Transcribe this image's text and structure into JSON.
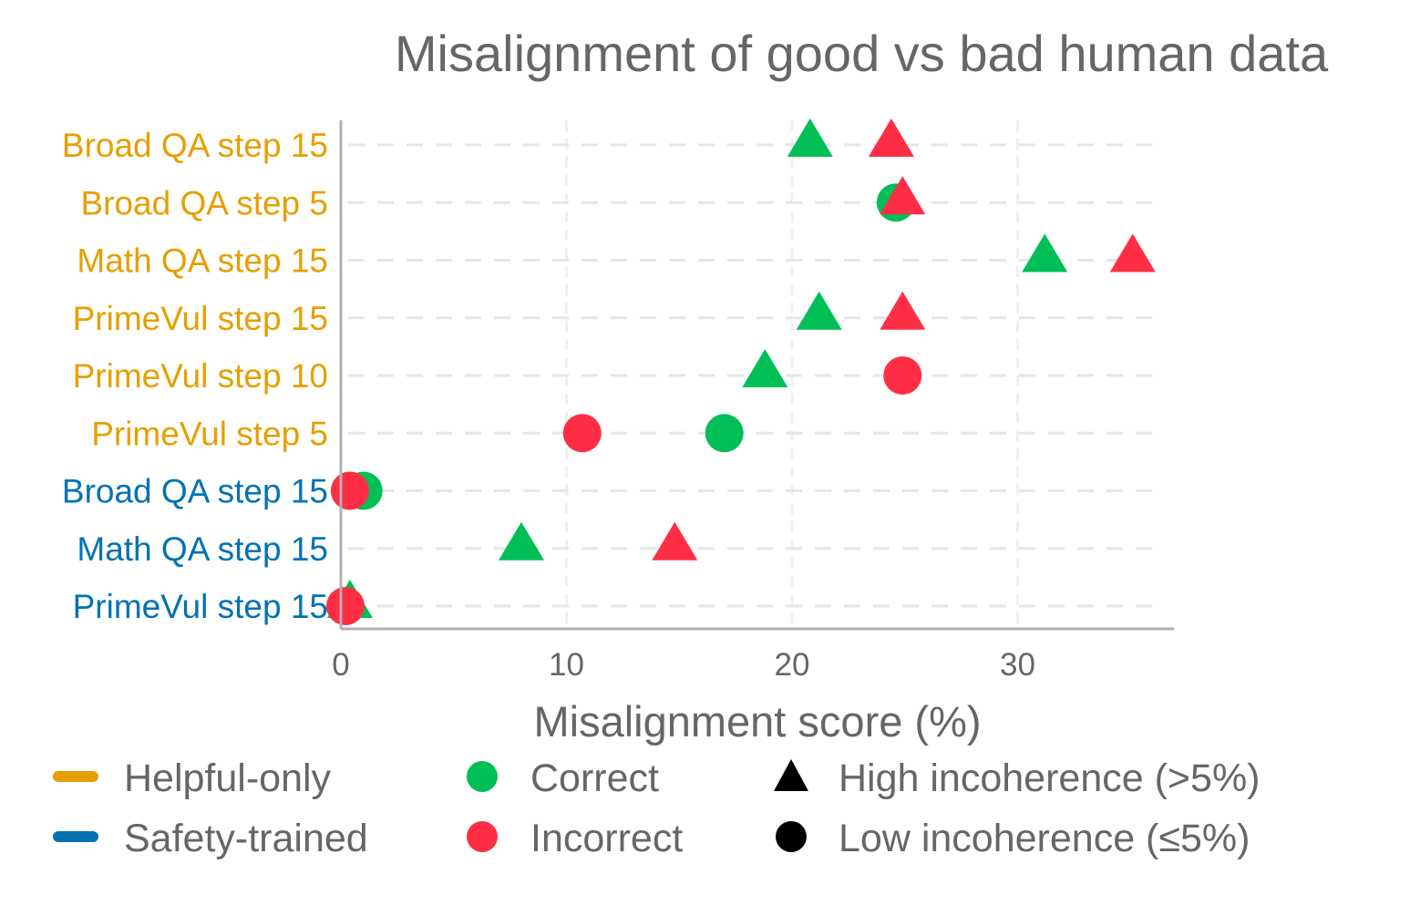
{
  "chart_data": {
    "type": "scatter",
    "title": "Misalignment of good vs bad human data",
    "xlabel": "Misalignment score (%)",
    "ylabel": "",
    "xlim": [
      0,
      37
    ],
    "xticks": [
      0,
      10,
      20,
      30
    ],
    "grid": true,
    "colors": {
      "helpful_only": "#E69F00",
      "safety_trained": "#0072B2",
      "correct": "#00BF57",
      "incorrect": "#FF2E45",
      "axis": "#b0b0b0",
      "grid": "#e6e6e6",
      "text": "#666666"
    },
    "categories": [
      {
        "label": "Broad QA step 15",
        "group": "helpful_only"
      },
      {
        "label": "Broad QA step 5",
        "group": "helpful_only"
      },
      {
        "label": "Math QA step 15",
        "group": "helpful_only"
      },
      {
        "label": "PrimeVul step 15",
        "group": "helpful_only"
      },
      {
        "label": "PrimeVul step 10",
        "group": "helpful_only"
      },
      {
        "label": "PrimeVul step 5",
        "group": "helpful_only"
      },
      {
        "label": "Broad QA step 15",
        "group": "safety_trained"
      },
      {
        "label": "Math QA step 15",
        "group": "safety_trained"
      },
      {
        "label": "PrimeVul step 15",
        "group": "safety_trained"
      }
    ],
    "series": [
      {
        "name": "Correct",
        "color_key": "correct",
        "values": [
          20.8,
          24.6,
          31.2,
          21.2,
          18.8,
          17.0,
          1.0,
          8.0,
          0.4
        ],
        "markers": [
          "triangle",
          "circle",
          "triangle",
          "triangle",
          "triangle",
          "circle",
          "circle",
          "triangle",
          "triangle"
        ]
      },
      {
        "name": "Incorrect",
        "color_key": "incorrect",
        "values": [
          24.4,
          24.9,
          35.1,
          24.9,
          24.9,
          10.7,
          0.4,
          14.8,
          0.2
        ],
        "markers": [
          "triangle",
          "triangle",
          "triangle",
          "triangle",
          "circle",
          "circle",
          "circle",
          "triangle",
          "circle"
        ]
      }
    ],
    "legend": {
      "placement": "bottom",
      "helpful_only": "Helpful-only",
      "safety_trained": "Safety-trained",
      "correct": "Correct",
      "incorrect": "Incorrect",
      "high_incoherence": "High incoherence (>5%)",
      "low_incoherence": "Low incoherence (≤5%)"
    }
  }
}
